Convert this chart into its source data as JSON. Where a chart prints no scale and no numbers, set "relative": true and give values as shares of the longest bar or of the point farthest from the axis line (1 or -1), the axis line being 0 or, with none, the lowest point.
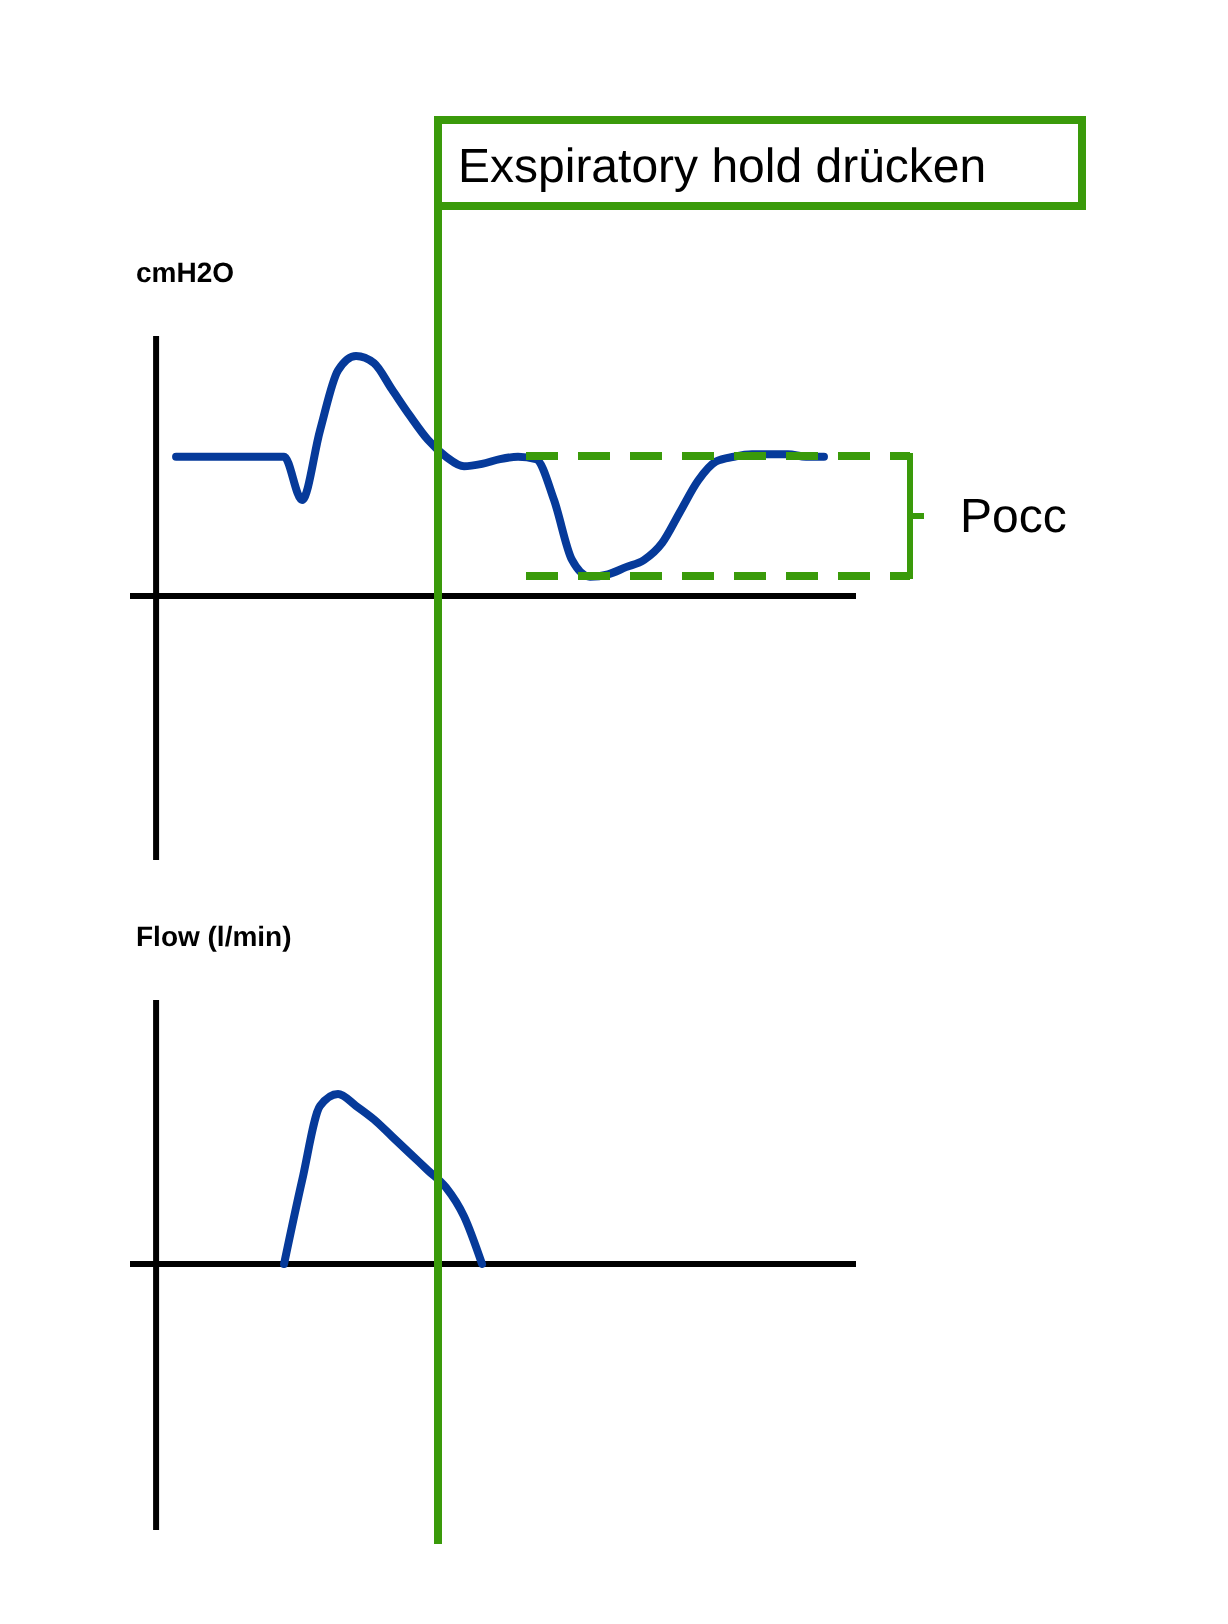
{
  "chart_data": [
    {
      "type": "line",
      "ylabel": "cmH2O",
      "relative": true,
      "marker": "none",
      "line_style": "solid",
      "categories": [
        null,
        null,
        null,
        null,
        null,
        null,
        null,
        null,
        null,
        null,
        null,
        null,
        null,
        null,
        null,
        null,
        null,
        null,
        null,
        null,
        null,
        null,
        null,
        null,
        null,
        null,
        null,
        null,
        null,
        null,
        null,
        null,
        null,
        null,
        null,
        null,
        null
      ],
      "series": [
        {
          "color": "#063a9a",
          "values": [
            0.58,
            0.58,
            0.58,
            0.58,
            0.58,
            0.58,
            0.58,
            0.4,
            0.69,
            0.94,
            1,
            0.97,
            0.86,
            0.75,
            0.65,
            0.58,
            0.54,
            0.55,
            0.57,
            0.58,
            0.57,
            0.4,
            0.15,
            0.08,
            0.09,
            0.12,
            0.15,
            0.22,
            0.35,
            0.48,
            0.56,
            0.58,
            0.59,
            0.59,
            0.59,
            0.58,
            0.58
          ]
        }
      ],
      "annotations": [
        "Exspiratory hold drücken",
        "Pocc"
      ]
    },
    {
      "type": "line",
      "ylabel": "Flow (l/min)",
      "relative": true,
      "marker": "none",
      "line_style": "solid",
      "categories": [
        null,
        null,
        null,
        null,
        null,
        null,
        null,
        null,
        null,
        null,
        null,
        null,
        null,
        null,
        null,
        null,
        null,
        null,
        null,
        null,
        null,
        null,
        null,
        null,
        null,
        null,
        null,
        null,
        null,
        null,
        null,
        null,
        null,
        null,
        null,
        null,
        null
      ],
      "series": [
        {
          "color": "#063a9a",
          "values": [
            null,
            null,
            null,
            null,
            null,
            null,
            0,
            0.49,
            0.93,
            1,
            0.93,
            0.85,
            0.75,
            0.65,
            0.55,
            0.45,
            0.28,
            0,
            null,
            null,
            null,
            null,
            null,
            null,
            null,
            null,
            null,
            null,
            null,
            null,
            null,
            null,
            null,
            null,
            null,
            null,
            null
          ]
        }
      ]
    }
  ]
}
